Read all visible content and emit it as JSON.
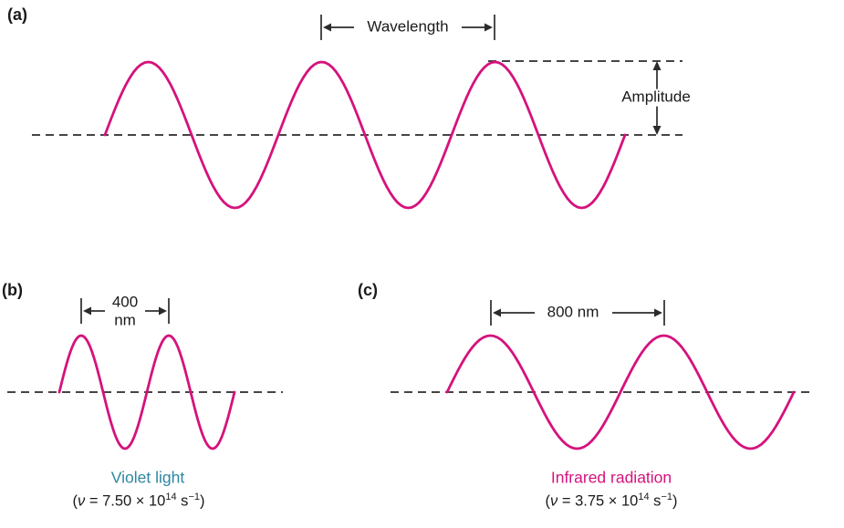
{
  "colors": {
    "wave": "#d5127d",
    "line": "#2b2b2b",
    "violet_label": "#2e86a1",
    "infrared_label": "#d5127d"
  },
  "panel_a": {
    "label": "(a)",
    "wavelength_label": "Wavelength",
    "amplitude_label": "Amplitude"
  },
  "panel_b": {
    "label": "(b)",
    "wavelength_value": "400",
    "wavelength_unit": "nm",
    "wave_name": "Violet light",
    "frequency": {
      "open": "(",
      "nu": "ν",
      "body": " = 7.50 × 10",
      "exp1": "14",
      "unit": " s",
      "exp2": "−1",
      "close": ")"
    }
  },
  "panel_c": {
    "label": "(c)",
    "wavelength_text": "800 nm",
    "wave_name": "Infrared radiation",
    "frequency": {
      "open": "(",
      "nu": "ν",
      "body": " = 3.75 × 10",
      "exp1": "14",
      "unit": " s",
      "exp2": "−1",
      "close": ")"
    }
  }
}
